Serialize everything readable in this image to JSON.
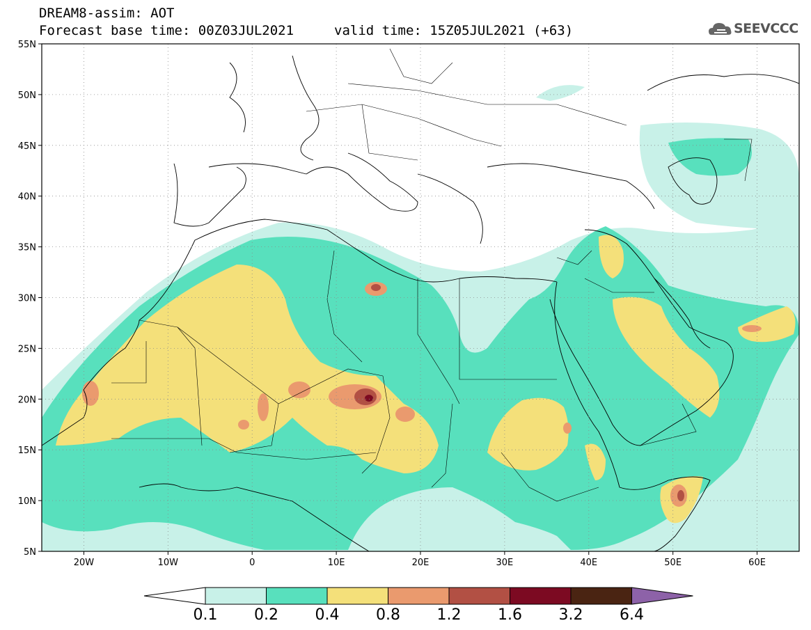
{
  "header": {
    "title": "DREAM8-assim: AOT",
    "base_time": "Forecast base time: 00Z03JUL2021",
    "valid_time": "valid time: 15Z05JUL2021 (+63)"
  },
  "logo": {
    "text": "SEEVCCC",
    "icon": "cloud-logo-icon"
  },
  "map": {
    "lat_labels": [
      "55N",
      "50N",
      "45N",
      "40N",
      "35N",
      "30N",
      "25N",
      "20N",
      "15N",
      "10N",
      "5N"
    ],
    "lon_labels": [
      "20W",
      "10W",
      "0",
      "10E",
      "20E",
      "30E",
      "40E",
      "50E",
      "60E"
    ],
    "lat_range": [
      5,
      55
    ],
    "lon_range": [
      -25,
      65
    ],
    "grid": "dotted"
  },
  "legend": {
    "labels": [
      "0.1",
      "0.2",
      "0.4",
      "0.8",
      "1.2",
      "1.6",
      "3.2",
      "6.4"
    ],
    "colors": [
      "#ffffff",
      "#c8f1e8",
      "#58e0bd",
      "#f4e07a",
      "#ea9a6e",
      "#b25044",
      "#7c0a22",
      "#4a2412",
      "#8d62a8"
    ]
  }
}
